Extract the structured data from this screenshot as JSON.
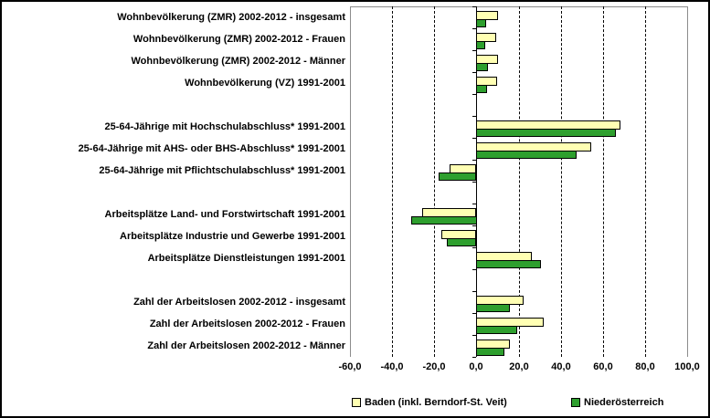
{
  "window": {
    "background_color": "#FFFFFF",
    "border_color": "#000000"
  },
  "chart_data": {
    "type": "bar",
    "orientation": "horizontal",
    "title": "",
    "xlabel": "",
    "ylabel": "",
    "xlim": [
      -60,
      100
    ],
    "grid": "vertical-dashed",
    "legend_position": "bottom",
    "categories": [
      "Wohnbevölkerung (ZMR) 2002-2012 - insgesamt",
      "Wohnbevölkerung (ZMR) 2002-2012 - Frauen",
      "Wohnbevölkerung (ZMR) 2002-2012 - Männer",
      "Wohnbevölkerung (VZ) 1991-2001",
      "",
      "25-64-Jährige mit Hochschulabschluss* 1991-2001",
      "25-64-Jährige mit AHS- oder BHS-Abschluss* 1991-2001",
      "25-64-Jährige mit Pflichtschulabschluss* 1991-2001",
      "",
      "Arbeitsplätze Land- und Forstwirtschaft 1991-2001",
      "Arbeitsplätze Industrie und Gewerbe 1991-2001",
      "Arbeitsplätze Dienstleistungen 1991-2001",
      "",
      "Zahl der Arbeitslosen 2002-2012 - insgesamt",
      "Zahl der Arbeitslosen 2002-2012 - Frauen",
      "Zahl der Arbeitslosen 2002-2012 - Männer"
    ],
    "series": [
      {
        "name": "Baden (inkl. Berndorf-St. Veit)",
        "color": "#FFFFB3",
        "values": [
          10.4,
          9.4,
          10.5,
          9.8,
          null,
          68.5,
          54.5,
          -12.7,
          null,
          -25.7,
          -16.6,
          26.4,
          null,
          22.7,
          32.0,
          16.2
        ]
      },
      {
        "name": "Niederösterreich",
        "color": "#2E9F2E",
        "values": [
          4.6,
          4.2,
          5.5,
          5.0,
          null,
          66.3,
          47.7,
          -17.8,
          null,
          -31.1,
          -14.0,
          30.8,
          null,
          16.0,
          19.5,
          13.4
        ]
      }
    ],
    "x_tick_values": [
      -60,
      -40,
      -20,
      0,
      20,
      40,
      60,
      80,
      100
    ],
    "x_ticks": [
      "-60,0",
      "-40,0",
      "-20,0",
      "0,0",
      "20,0",
      "40,0",
      "60,0",
      "80,0",
      "100,0"
    ],
    "gridline_values": [
      -40,
      -20,
      20,
      40,
      60,
      80
    ]
  }
}
